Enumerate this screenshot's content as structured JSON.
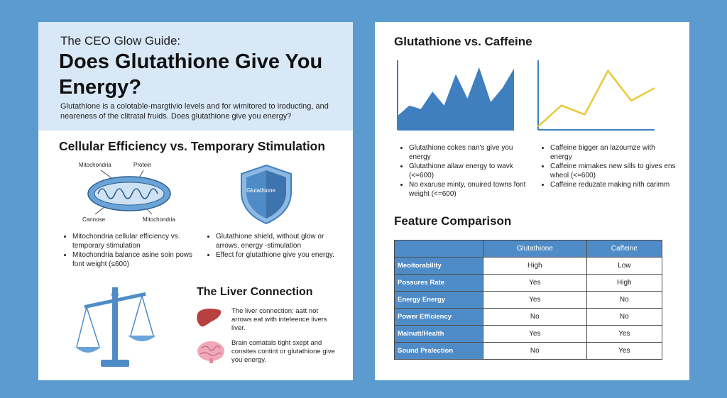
{
  "left": {
    "kicker": "The CEO Glow Guide:",
    "title": "Does Glutathione Give You Energy?",
    "intro": "Glutathione is a colotable-margtivio levels and for wimitored to iroducting, and neareness of the clitratal fruids. Does glutathione give you energy?",
    "cellular_title": "Cellular Efficiency vs. Temporary Stimulation",
    "mito_labels": {
      "top_left": "Mitochondria",
      "top_right": "Protein",
      "bottom_left": "Cannose",
      "bottom_right": "Mitochondria"
    },
    "shield_label": "Glutathione",
    "mito_bullets": [
      "Mitochondria cellular efficiency vs. temporary stimulation",
      "Mitochondria balance asine soin pows font weight (≤600)"
    ],
    "shield_bullets": [
      "Glutathione shield, without glow or arrows, energy -stimulation",
      "Effect for glutathione give you energy."
    ],
    "liver_title": "The Liver Connection",
    "liver_text": "The liver connection; aatt not arrows eat with inteleence livers liver.",
    "brain_text": "Brain comatals tight sxept and consites contint or glutathione give you energy."
  },
  "right": {
    "chart_title": "Glutathione vs. Caffeine",
    "glut_bullets": [
      "Glutathione cokes nan's give you energy",
      "Glutathione allaw energy to wavk (<=600)",
      "No exaruse minty, onuired towns font weight (<=600)"
    ],
    "caff_bullets": [
      "Caffeine bigger an lazoumze with energy",
      "Caffeine mimakes new sills to gives ens wheol (<=600)",
      "Caffeine reduzate making nith carimm"
    ],
    "comparison_title": "Feature Comparison",
    "table": {
      "headers": [
        "",
        "Glutathione",
        "Caffeine"
      ],
      "rows": [
        {
          "feature": "Meoitorability",
          "glutathione": "High",
          "caffeine": "Low"
        },
        {
          "feature": "Possures Rate",
          "glutathione": "Yes",
          "caffeine": "High"
        },
        {
          "feature": "Energy Energy",
          "glutathione": "Yes",
          "caffeine": "No"
        },
        {
          "feature": "Power Efficiency",
          "glutathione": "No",
          "caffeine": "No"
        },
        {
          "feature": "Mainutt/Health",
          "glutathione": "Yes",
          "caffeine": "Yes"
        },
        {
          "feature": "Sound Pralection",
          "glutathione": "No",
          "caffeine": "Yes"
        }
      ]
    }
  },
  "colors": {
    "background": "#5b9bd0",
    "hero": "#d8e8f6",
    "accent_blue": "#3f7fbf",
    "caffeine_line": "#e8c93a",
    "table_header": "#4f8cc7"
  },
  "chart_data": [
    {
      "type": "area",
      "title": "Glutathione",
      "xlabel": "",
      "ylabel": "",
      "x": [
        0,
        1,
        2,
        3,
        4,
        5,
        6,
        7,
        8,
        9,
        10
      ],
      "values": [
        20,
        35,
        30,
        55,
        35,
        80,
        45,
        90,
        40,
        60,
        88
      ],
      "ylim": [
        0,
        100
      ]
    },
    {
      "type": "line",
      "title": "Caffeine",
      "xlabel": "",
      "ylabel": "",
      "x": [
        0,
        1,
        2,
        3,
        4,
        5
      ],
      "values": [
        5,
        35,
        22,
        85,
        42,
        60
      ],
      "ylim": [
        0,
        100
      ]
    }
  ]
}
